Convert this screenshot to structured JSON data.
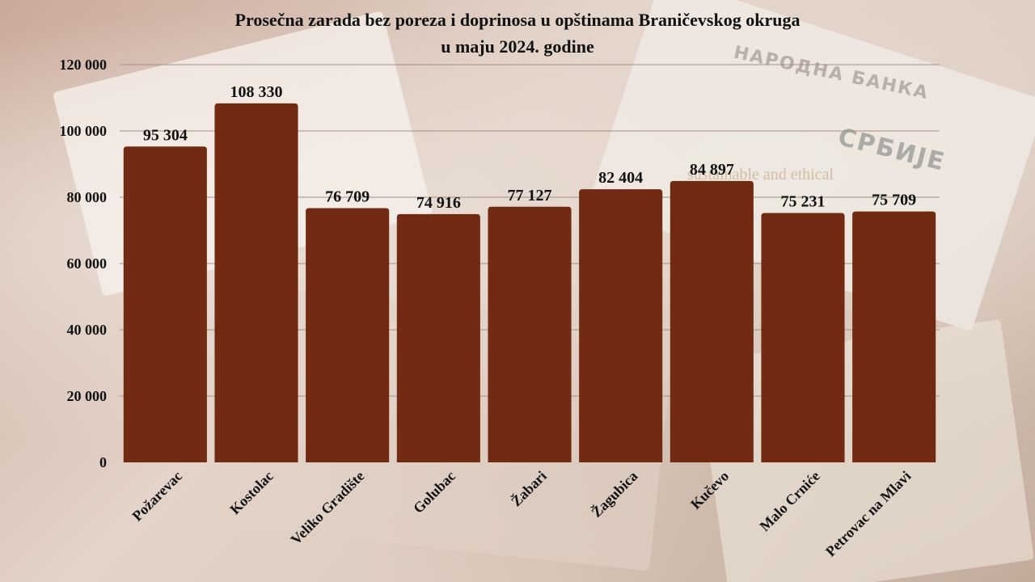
{
  "background": {
    "banknote_text_1": "НАРОДНА БАНКА",
    "banknote_text_2": "СРБИЈЕ",
    "watermark": "sustainable and ethical"
  },
  "colors": {
    "bar": "#722a12",
    "grid": "#a58f86",
    "text": "#111111"
  },
  "chart_data": {
    "type": "bar",
    "title_line1": "Prosečna zarada bez poreza i doprinosa u opštinama Braničevskog okruga",
    "title_line2": "u maju 2024. godine",
    "categories": [
      "Požarevac",
      "Kostolac",
      "Veliko Gradište",
      "Golubac",
      "Žabari",
      "Žagubica",
      "Kučevo",
      "Malo Crniće",
      "Petrovac na Mlavi"
    ],
    "values": [
      95304,
      108330,
      76709,
      74916,
      77127,
      82404,
      84897,
      75231,
      75709
    ],
    "value_labels": [
      "95 304",
      "108 330",
      "76 709",
      "74 916",
      "77 127",
      "82 404",
      "84 897",
      "75 231",
      "75 709"
    ],
    "yticks": [
      0,
      20000,
      40000,
      60000,
      80000,
      100000,
      120000
    ],
    "ytick_labels": [
      "0",
      "20 000",
      "40 000",
      "60 000",
      "80 000",
      "100 000",
      "120 000"
    ],
    "ylim": [
      0,
      120000
    ],
    "xlabel": "",
    "ylabel": "",
    "grid": true,
    "legend": "none"
  }
}
